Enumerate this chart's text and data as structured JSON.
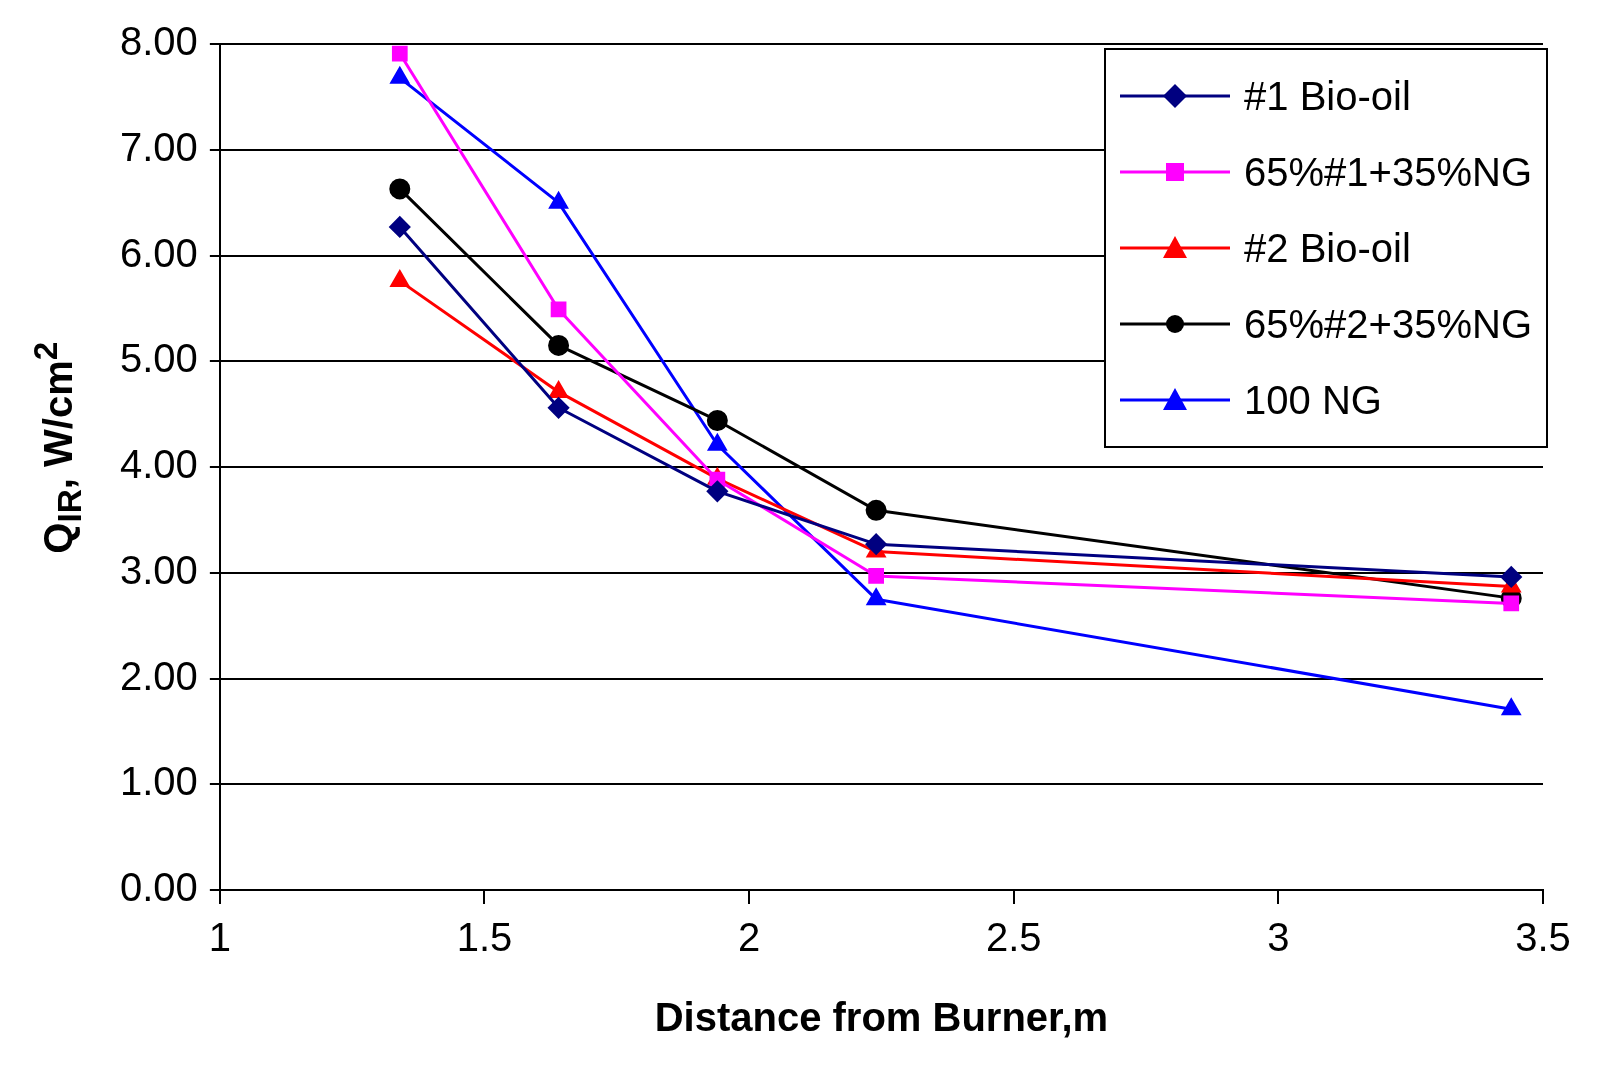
{
  "chart_data": {
    "type": "line",
    "xlabel": "Distance from Burner,m",
    "ylabel": "Q$_{IR}$, W/cm$^{2}$",
    "x": [
      1.34,
      1.64,
      1.94,
      2.24,
      3.44
    ],
    "series": [
      {
        "name": "#1 Bio-oil",
        "color": "#000080",
        "marker": "diamond",
        "values": [
          6.27,
          4.56,
          3.77,
          3.27,
          2.96
        ]
      },
      {
        "name": "65%#1+35%NG",
        "color": "#ff00ff",
        "marker": "square",
        "values": [
          7.91,
          5.49,
          3.88,
          2.97,
          2.71
        ]
      },
      {
        "name": "#2 Bio-oil",
        "color": "#ff0000",
        "marker": "triangle",
        "values": [
          5.76,
          4.71,
          3.89,
          3.2,
          2.87
        ]
      },
      {
        "name": "65%#2+35%NG",
        "color": "#000000",
        "marker": "circle",
        "values": [
          6.63,
          5.15,
          4.44,
          3.59,
          2.76
        ]
      },
      {
        "name": "100 NG",
        "color": "#0000ff",
        "marker": "triangle",
        "values": [
          7.68,
          6.5,
          4.21,
          2.75,
          1.71
        ]
      }
    ],
    "xlim": [
      1,
      3.5
    ],
    "xticks": [
      1,
      1.5,
      2,
      2.5,
      3,
      3.5
    ],
    "ylim": [
      0,
      8
    ],
    "yticks": [
      {
        "value": 0,
        "label": "0.00"
      },
      {
        "value": 1,
        "label": "1.00"
      },
      {
        "value": 2,
        "label": "2.00"
      },
      {
        "value": 3,
        "label": "3.00"
      },
      {
        "value": 4,
        "label": "4.00"
      },
      {
        "value": 5,
        "label": "5.00"
      },
      {
        "value": 6,
        "label": "6.00"
      },
      {
        "value": 7,
        "label": "7.00"
      },
      {
        "value": 8,
        "label": "8.00"
      }
    ],
    "grid": "y",
    "legend": "top right"
  }
}
